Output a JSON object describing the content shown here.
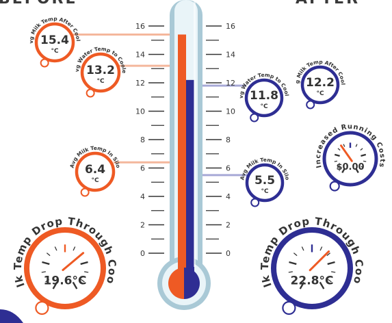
{
  "headers": {
    "before": "BEFORE",
    "after": "AFTER"
  },
  "colors": {
    "before": "#ee5a24",
    "after": "#2e2e93",
    "before_light": "#f4b79c",
    "after_light": "#a7a9d6"
  },
  "scale": {
    "ticks": [
      "16",
      "14",
      "12",
      "10",
      "8",
      "6",
      "4",
      "2",
      "0"
    ],
    "min": 0,
    "max": 16
  },
  "thermometer": {
    "before_level": 15.4,
    "after_level": 12.2
  },
  "gauges": {
    "before_after_cooler": {
      "label": "Avg Milk Temp After Cooler",
      "value": "15.4",
      "unit": "°C",
      "level": 15.4
    },
    "before_water": {
      "label": "Avg Water Temp to Cooler",
      "value": "13.2",
      "unit": "°C",
      "level": 13.2
    },
    "before_silo": {
      "label": "Avg Milk Temp In Silo",
      "value": "6.4",
      "unit": "°C",
      "level": 6.4
    },
    "after_water": {
      "label": "Avg Water Temp to Cooler",
      "value": "11.8",
      "unit": "°C",
      "level": 11.8
    },
    "after_after_cooler": {
      "label": "Avg Milk Temp After Cooler",
      "value": "12.2",
      "unit": "°C",
      "level": 12.2
    },
    "after_silo": {
      "label": "Avg Milk Temp In Silo",
      "value": "5.5",
      "unit": "°C",
      "level": 5.5
    }
  },
  "dials": {
    "before_drop": {
      "label": "Milk Temp Drop Through Cooler",
      "value": "19.6°C"
    },
    "after_drop": {
      "label": "Milk Temp Drop Through Cooler",
      "value": "22.8°C"
    },
    "running_costs": {
      "label": "Increased Running Costs",
      "value": "$0.00"
    }
  }
}
